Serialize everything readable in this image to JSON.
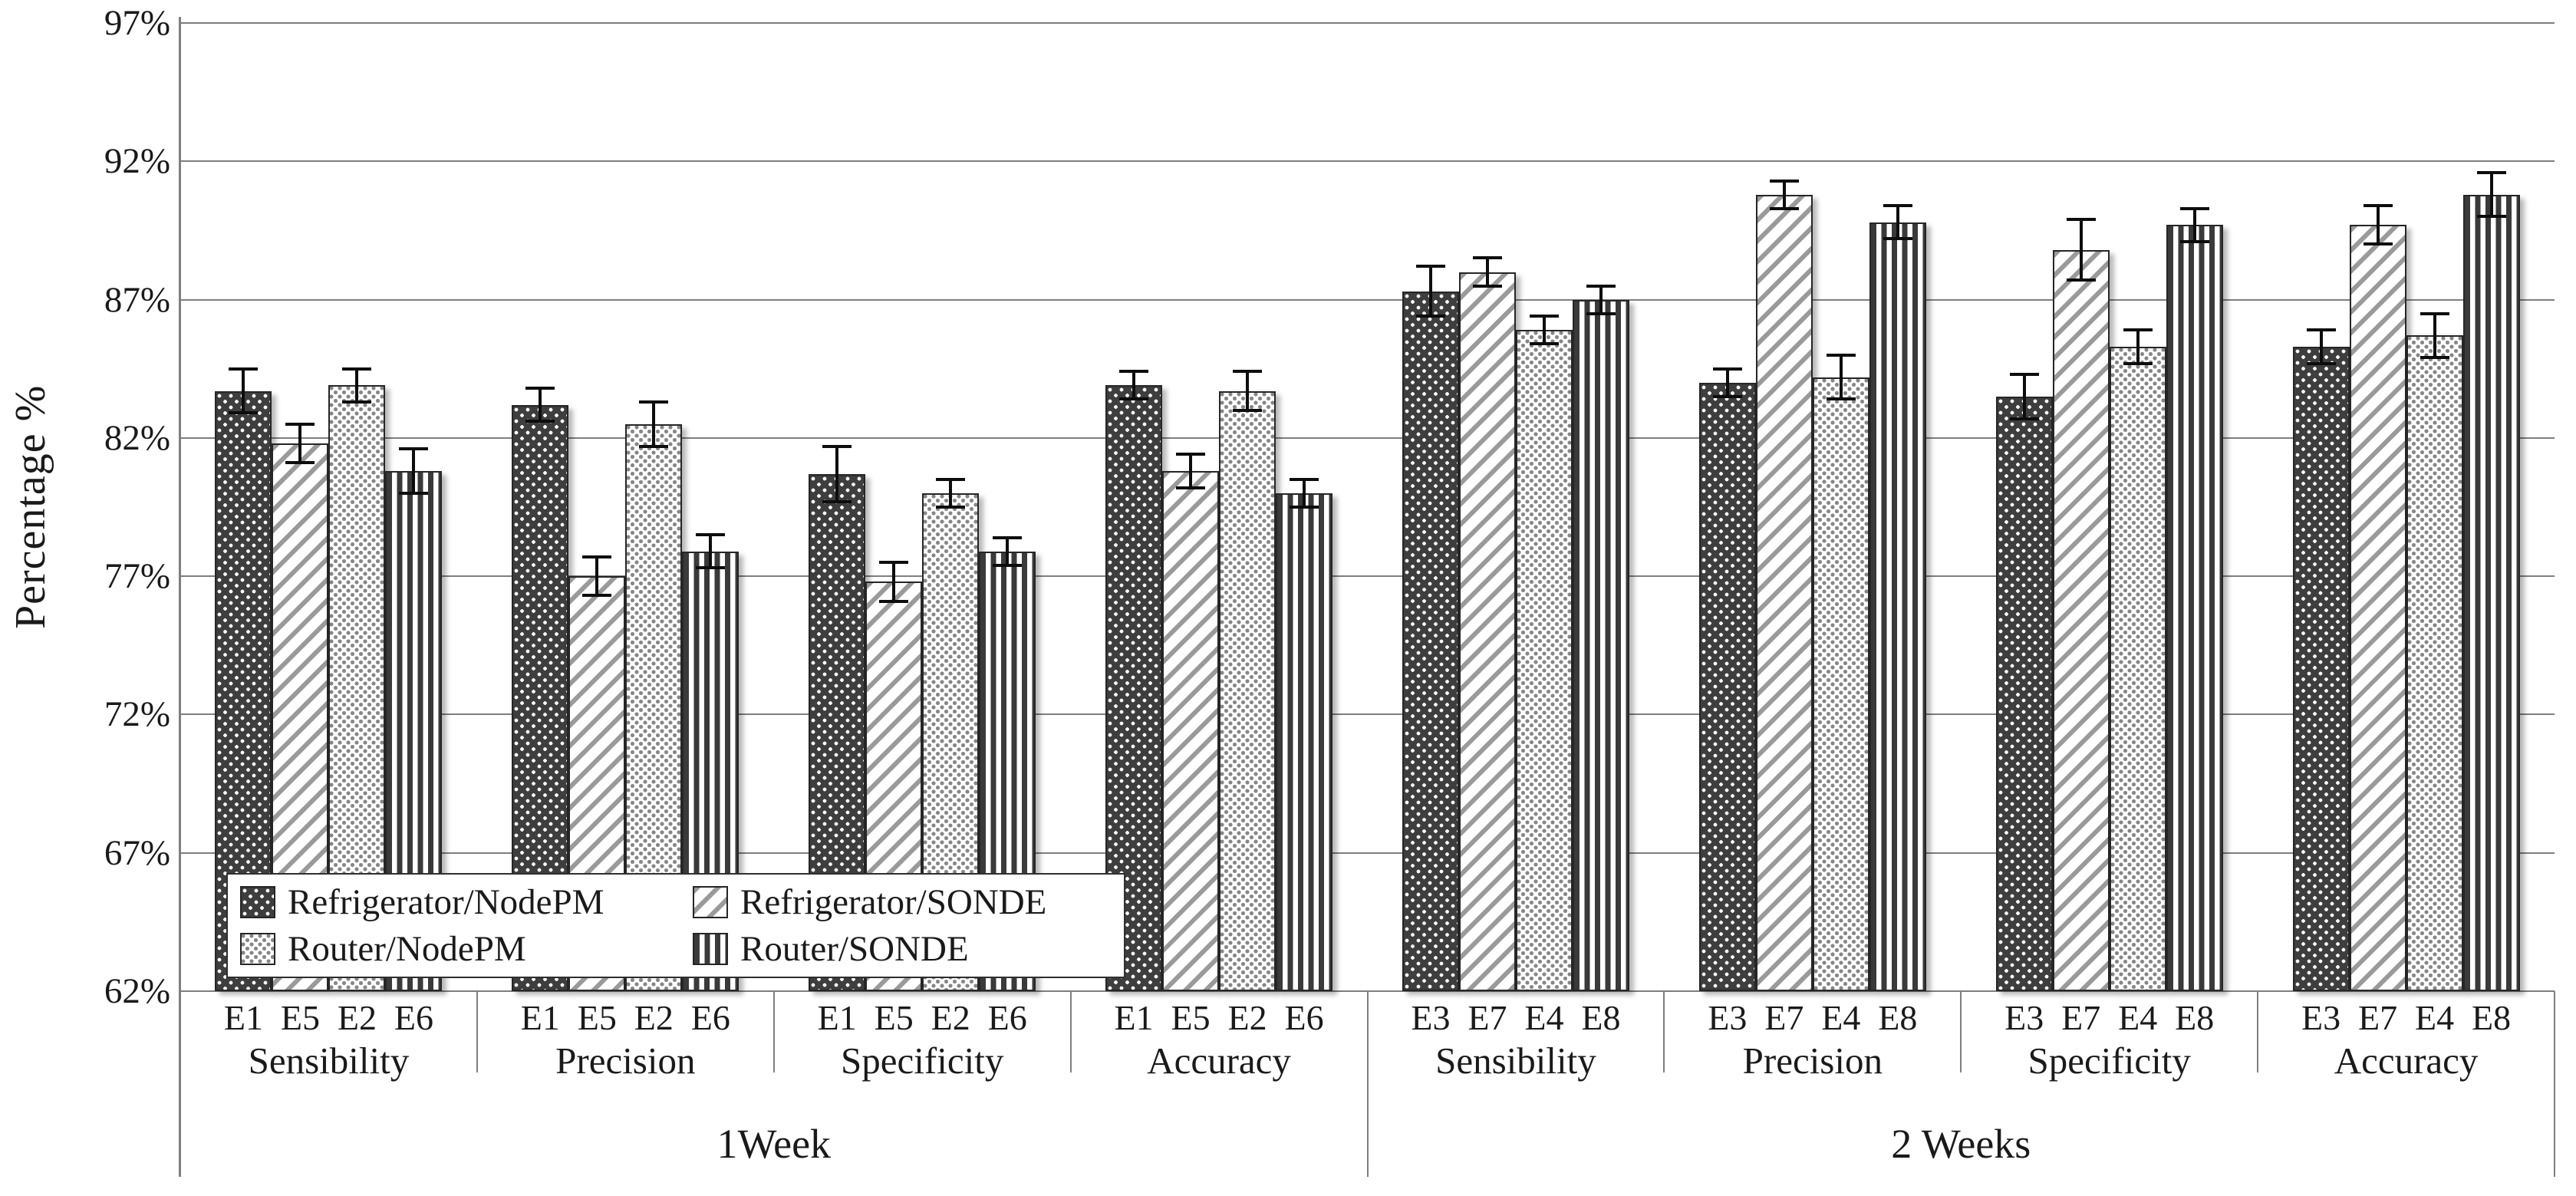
{
  "page": {
    "background": "#ffffff"
  },
  "y_axis": {
    "label": "Percentage %"
  },
  "legend": {
    "position": "inside-bottom-left"
  },
  "colors": {
    "grid": "#7f7f7f",
    "text": "#1a1a1a",
    "bar_dark_fill": "#3e3e3e",
    "diag_stripe_gray": "#9a9a9a",
    "light_dot_gray": "#878787",
    "vstripe_dark": "#3a3a3a",
    "error_bar": "#0d0d0d"
  },
  "chart_data": {
    "type": "bar",
    "title": "",
    "xlabel": "",
    "ylabel": "Percentage %",
    "ylim": [
      62,
      97
    ],
    "ytick_step": 5,
    "yticks": [
      "97%",
      "92%",
      "87%",
      "82%",
      "77%",
      "72%",
      "67%",
      "62%"
    ],
    "grid": true,
    "error_bars": true,
    "legend_position": "inside bottom-left",
    "week_sections": [
      {
        "label": "1Week",
        "metrics": [
          "Sensibility",
          "Precision",
          "Specificity",
          "Accuracy"
        ],
        "bar_labels": [
          "E1",
          "E5",
          "E2",
          "E6"
        ]
      },
      {
        "label": "2 Weeks",
        "metrics": [
          "Sensibility",
          "Precision",
          "Specificity",
          "Accuracy"
        ],
        "bar_labels": [
          "E3",
          "E7",
          "E4",
          "E8"
        ]
      }
    ],
    "categories": [
      "1Week Sensibility",
      "1Week Precision",
      "1Week Specificity",
      "1Week Accuracy",
      "2 Weeks Sensibility",
      "2 Weeks Precision",
      "2 Weeks Specificity",
      "2 Weeks Accuracy"
    ],
    "series": [
      {
        "name": "Refrigerator/NodePM",
        "pattern": "dark-dots",
        "values": [
          83.7,
          83.2,
          80.7,
          83.9,
          87.3,
          84.0,
          83.5,
          85.3
        ],
        "errors": [
          0.8,
          0.6,
          1.0,
          0.5,
          0.9,
          0.5,
          0.8,
          0.6
        ]
      },
      {
        "name": "Refrigerator/SONDE",
        "pattern": "diag",
        "values": [
          81.8,
          77.0,
          76.8,
          80.8,
          88.0,
          90.8,
          88.8,
          89.7
        ],
        "errors": [
          0.7,
          0.7,
          0.7,
          0.6,
          0.5,
          0.5,
          1.1,
          0.7
        ]
      },
      {
        "name": "Router/NodePM",
        "pattern": "light-dots",
        "values": [
          83.9,
          82.5,
          80.0,
          83.7,
          85.9,
          84.2,
          85.3,
          85.7
        ],
        "errors": [
          0.6,
          0.8,
          0.5,
          0.7,
          0.5,
          0.8,
          0.6,
          0.8
        ]
      },
      {
        "name": "Router/SONDE",
        "pattern": "vstripe",
        "values": [
          80.8,
          77.9,
          77.9,
          80.0,
          87.0,
          89.8,
          89.7,
          90.8
        ],
        "errors": [
          0.8,
          0.6,
          0.5,
          0.5,
          0.5,
          0.6,
          0.6,
          0.8
        ]
      }
    ]
  }
}
